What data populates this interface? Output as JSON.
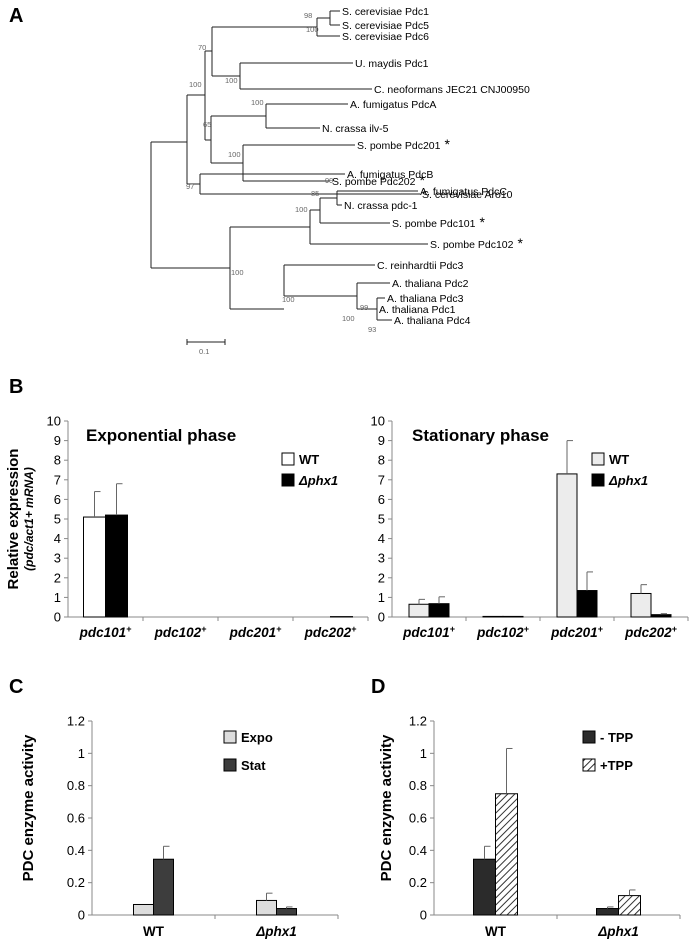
{
  "panels": {
    "a": "A",
    "b": "B",
    "c": "C",
    "d": "D"
  },
  "tree": {
    "scale_label": "0.1",
    "taxa": [
      {
        "label": "S. cerevisiae Pdc1",
        "star": false
      },
      {
        "label": "S. cerevisiae Pdc5",
        "star": false
      },
      {
        "label": "S. cerevisiae Pdc6",
        "star": false
      },
      {
        "label": "U. maydis Pdc1",
        "star": false
      },
      {
        "label": "C. neoformans JEC21 CNJ00950",
        "star": false
      },
      {
        "label": "A. fumigatus PdcA",
        "star": false
      },
      {
        "label": "N. crassa ilv-5",
        "star": false
      },
      {
        "label": "S. pombe Pdc201",
        "star": true
      },
      {
        "label": "S. pombe Pdc202",
        "star": true
      },
      {
        "label": "A. fumigatus PdcB",
        "star": false
      },
      {
        "label": "S. cerevisiae Aro10",
        "star": false
      },
      {
        "label": "A. fumigatus PdcC",
        "star": false
      },
      {
        "label": "N. crassa pdc-1",
        "star": false
      },
      {
        "label": "S. pombe Pdc101",
        "star": true
      },
      {
        "label": "S. pombe Pdc102",
        "star": true
      },
      {
        "label": "C. reinhardtii Pdc3",
        "star": false
      },
      {
        "label": "A. thaliana Pdc2",
        "star": false
      },
      {
        "label": "A. thaliana Pdc1",
        "star": false
      },
      {
        "label": "A. thaliana Pdc3",
        "star": false
      },
      {
        "label": "A. thaliana Pdc4",
        "star": false
      }
    ],
    "star_symbol": "*",
    "bootstrap_values": [
      "98",
      "100",
      "70",
      "100",
      "100",
      "100",
      "65",
      "100",
      "97",
      "99",
      "85",
      "100",
      "100",
      "100",
      "100",
      "99",
      "93"
    ]
  },
  "chart_data": [
    {
      "id": "B-left",
      "type": "bar",
      "title": "Exponential phase",
      "ylabel": "Relative expression",
      "ylabel_sub": "(pdc/act1+ mRNA)",
      "ylim": [
        0,
        10
      ],
      "yticks": [
        "0",
        "1",
        "2",
        "3",
        "4",
        "5",
        "6",
        "7",
        "8",
        "9",
        "10"
      ],
      "categories": [
        "pdc101+",
        "pdc102+",
        "pdc201+",
        "pdc202+"
      ],
      "series": [
        {
          "name": "WT",
          "values": [
            5.1,
            0.0,
            0.0,
            0.0
          ],
          "errors": [
            1.3,
            0,
            0,
            0
          ],
          "color": "#ffffff"
        },
        {
          "name": "Δphx1",
          "values": [
            5.2,
            0.0,
            0.0,
            0.02
          ],
          "errors": [
            1.6,
            0,
            0,
            0
          ],
          "color": "#000000"
        }
      ]
    },
    {
      "id": "B-right",
      "type": "bar",
      "title": "Stationary phase",
      "ylim": [
        0,
        10
      ],
      "yticks": [
        "0",
        "1",
        "2",
        "3",
        "4",
        "5",
        "6",
        "7",
        "8",
        "9",
        "10"
      ],
      "categories": [
        "pdc101+",
        "pdc102+",
        "pdc201+",
        "pdc202+"
      ],
      "series": [
        {
          "name": "WT",
          "values": [
            0.65,
            0.03,
            7.3,
            1.2
          ],
          "errors": [
            0.25,
            0,
            1.7,
            0.45
          ],
          "color": "#ececec"
        },
        {
          "name": "Δphx1",
          "values": [
            0.68,
            0.03,
            1.35,
            0.12
          ],
          "errors": [
            0.35,
            0,
            0.95,
            0.05
          ],
          "color": "#000000"
        }
      ]
    },
    {
      "id": "C",
      "type": "bar",
      "ylabel": "PDC  enzyme activity",
      "ylim": [
        0,
        1.2
      ],
      "yticks": [
        "0",
        "0.2",
        "0.4",
        "0.6",
        "0.8",
        "1",
        "1.2"
      ],
      "categories": [
        "WT",
        "Δphx1"
      ],
      "series": [
        {
          "name": "Expo",
          "values": [
            0.065,
            0.09
          ],
          "errors": [
            0,
            0.045
          ],
          "color": "#dddddd"
        },
        {
          "name": "Stat",
          "values": [
            0.345,
            0.04
          ],
          "errors": [
            0.08,
            0.01
          ],
          "color": "#3d3d3d"
        }
      ]
    },
    {
      "id": "D",
      "type": "bar",
      "ylabel": "PDC  enzyme activity",
      "ylim": [
        0,
        1.2
      ],
      "yticks": [
        "0",
        "0.2",
        "0.4",
        "0.6",
        "0.8",
        "1",
        "1.2"
      ],
      "categories": [
        "WT",
        "Δphx1"
      ],
      "series": [
        {
          "name": "- TPP",
          "values": [
            0.345,
            0.04
          ],
          "errors": [
            0.08,
            0.01
          ],
          "color": "#2b2b2b"
        },
        {
          "name": "+TPP",
          "values": [
            0.75,
            0.12
          ],
          "errors": [
            0.28,
            0.035
          ],
          "color": "hatch"
        }
      ]
    }
  ]
}
